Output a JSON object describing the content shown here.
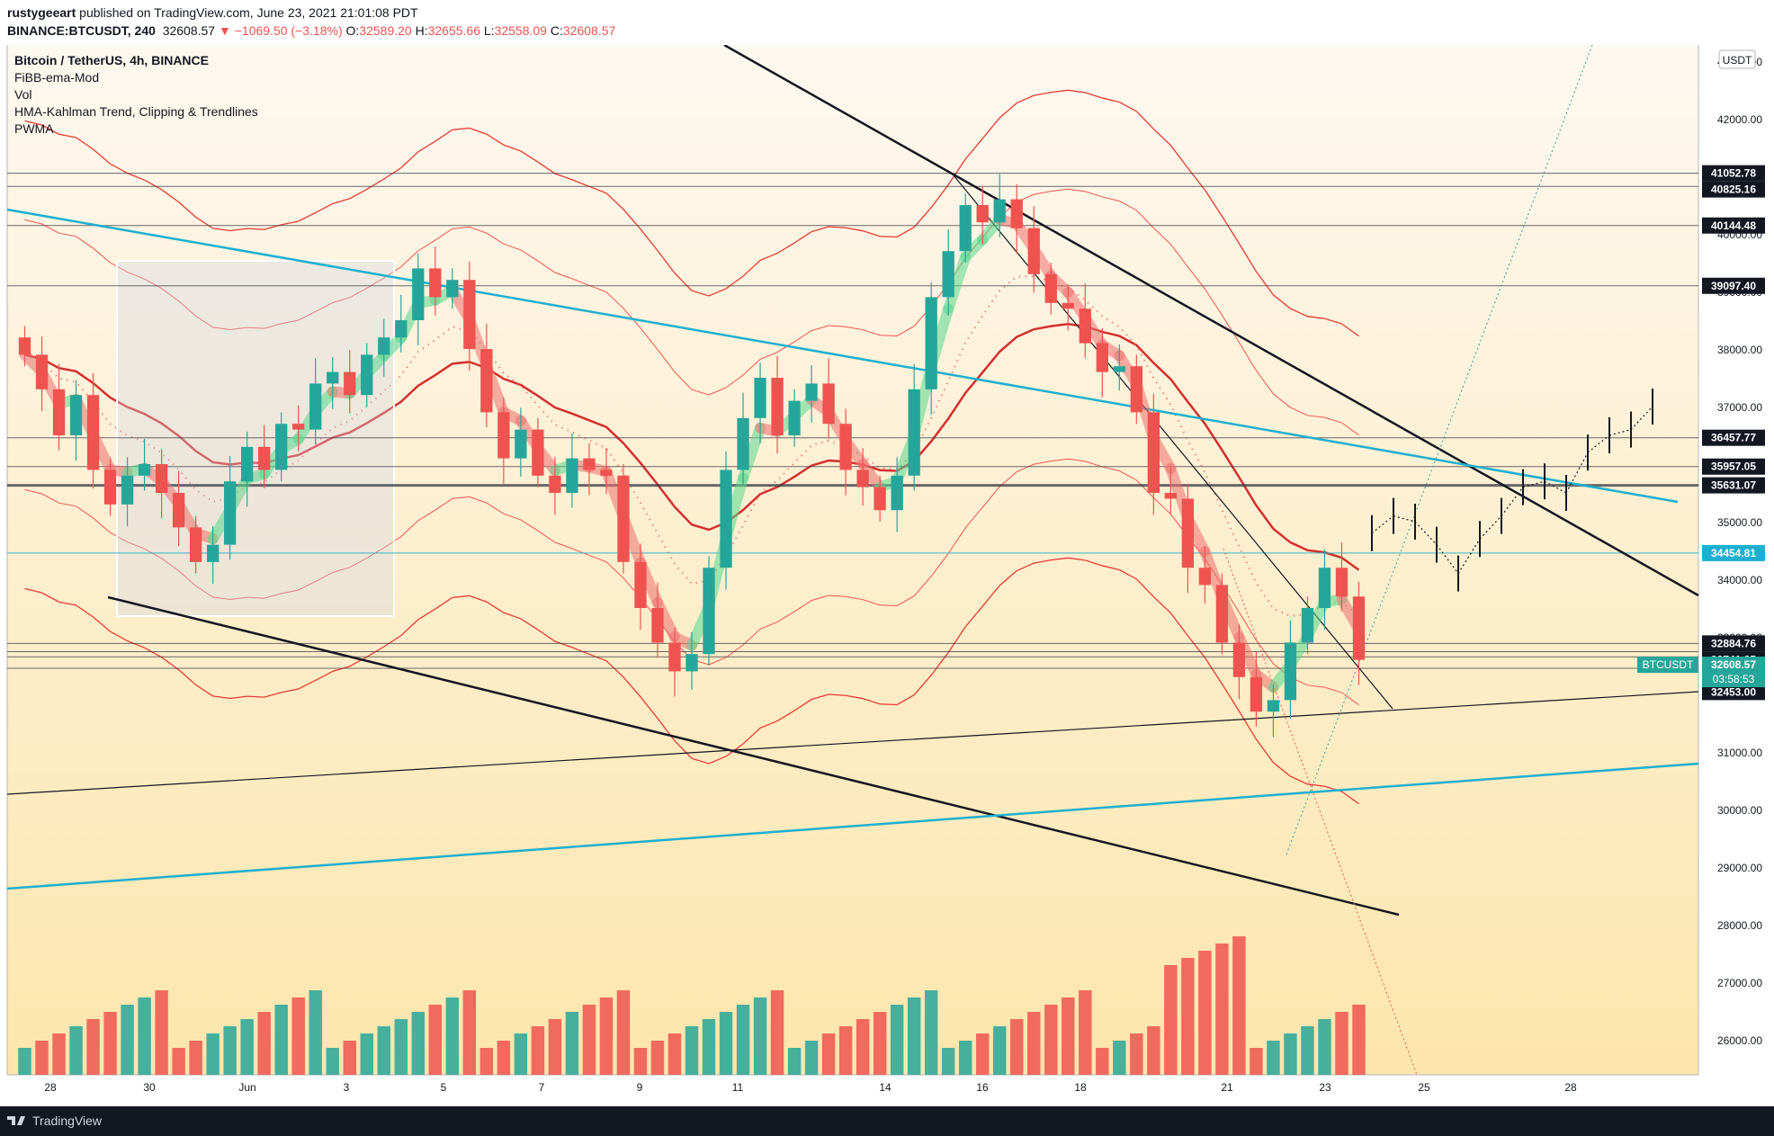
{
  "header": {
    "publisher": "rustygeeart",
    "published_text": "published on TradingView.com, June 23, 2021 21:01:08 PDT",
    "symbol_line": "BINANCE:BTCUSDT, 240",
    "last": "32608.57",
    "change": "−1069.50 (−3.18%)",
    "open": "32589.20",
    "high": "32655.66",
    "low": "32558.09",
    "close": "32608.57"
  },
  "legend": [
    "Bitcoin / TetherUS, 4h, BINANCE",
    "FiBB-ema-Mod",
    "Vol",
    "HMA-Kahlman Trend, Clipping & Trendlines",
    "PWMA"
  ],
  "currency": "USDT",
  "footer_brand": "TradingView",
  "colors": {
    "up": "#26a69a",
    "down": "#ef5350",
    "bg_top": "#fdf8f0",
    "bg_bottom": "#fde6ad"
  },
  "chart_data": {
    "type": "candlestick",
    "ylim": [
      25500,
      43500
    ],
    "y_ticks": [
      26000,
      27000,
      28000,
      29000,
      30000,
      31000,
      32000,
      33000,
      34000,
      35000,
      36000,
      37000,
      38000,
      39000,
      40000,
      41000,
      42000,
      43000
    ],
    "x_tick_labels": [
      "28",
      "30",
      "Jun",
      "3",
      "5",
      "7",
      "9",
      "11",
      "14",
      "16",
      "18",
      "21",
      "23",
      "25",
      "28"
    ],
    "close_series": [
      37900,
      37300,
      36500,
      37200,
      35900,
      35300,
      35800,
      36000,
      35500,
      34900,
      34300,
      34600,
      35700,
      36300,
      35900,
      36700,
      36600,
      37400,
      37600,
      37200,
      37900,
      38200,
      38500,
      39400,
      38900,
      39200,
      38000,
      36900,
      36100,
      36600,
      35800,
      35500,
      36100,
      35900,
      35800,
      34300,
      33500,
      32900,
      32400,
      32700,
      34200,
      35900,
      36800,
      37500,
      36500,
      37100,
      37400,
      36700,
      35900,
      35600,
      35200,
      35800,
      37300,
      38900,
      39700,
      40500,
      40200,
      40600,
      40100,
      39300,
      38800,
      38700,
      38100,
      37600,
      37700,
      36900,
      35500,
      35400,
      34200,
      33900,
      32900,
      32300,
      31700,
      31900,
      32900,
      33500,
      34200,
      33700,
      32600
    ],
    "horizontal_levels": [
      41052.78,
      40825.16,
      40144.48,
      39097.4,
      36457.77,
      35957.05,
      35631.07,
      34454.81,
      32884.76,
      32741.35,
      32651.85,
      32453.0
    ],
    "last_price": 32608.57,
    "last_price_label": "BTCUSDT",
    "countdown": "03:58:53",
    "projection": [
      34800,
      35100,
      35000,
      34600,
      34100,
      34700,
      35100,
      35600,
      35700,
      35500,
      36200,
      36500,
      36600,
      37000
    ]
  }
}
